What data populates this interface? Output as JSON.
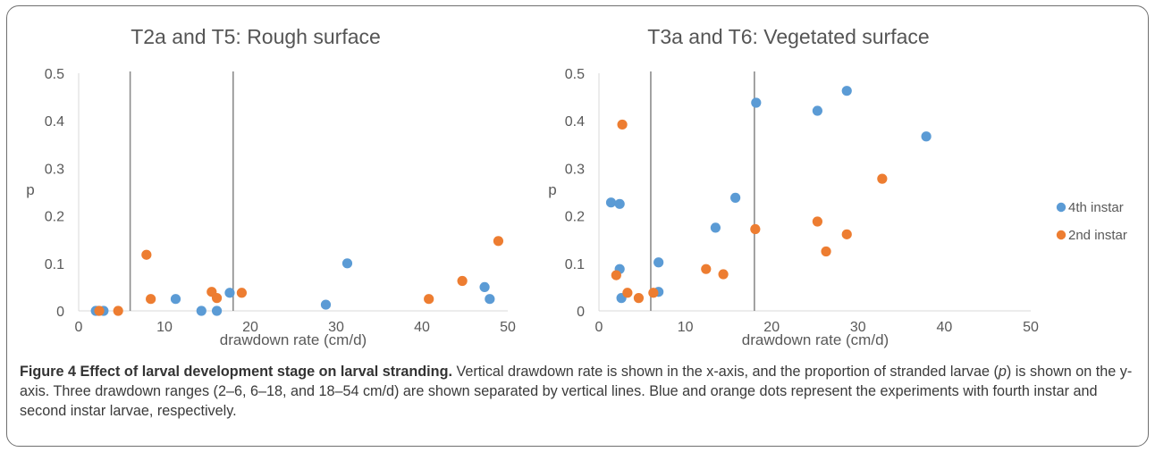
{
  "chart_data": [
    {
      "type": "scatter",
      "title": "T2a and T5: Rough surface",
      "xlabel": "drawdown rate (cm/d)",
      "ylabel": "p",
      "xlim": [
        0,
        50
      ],
      "ylim": [
        0,
        0.5
      ],
      "xticks": [
        "0",
        "10",
        "20",
        "30",
        "40",
        "50"
      ],
      "yticks": [
        "0",
        "0.1",
        "0.2",
        "0.3",
        "0.4",
        "0.5"
      ],
      "grid": false,
      "vertical_lines": [
        6,
        18
      ],
      "series": [
        {
          "color": "#5b9bd5",
          "points": [
            [
              2,
              0
            ],
            [
              2.3,
              0
            ],
            [
              2.9,
              0
            ],
            [
              11.3,
              0.025
            ],
            [
              14.3,
              0
            ],
            [
              16.1,
              0
            ],
            [
              17.6,
              0.038
            ],
            [
              28.8,
              0.013
            ],
            [
              31.3,
              0.1
            ],
            [
              47.3,
              0.05
            ],
            [
              47.9,
              0.025
            ]
          ]
        },
        {
          "color": "#ed7d31",
          "points": [
            [
              2.4,
              0
            ],
            [
              4.6,
              0
            ],
            [
              7.9,
              0.118
            ],
            [
              8.4,
              0.025
            ],
            [
              15.5,
              0.04
            ],
            [
              16.1,
              0.027
            ],
            [
              19,
              0.038
            ],
            [
              40.8,
              0.025
            ],
            [
              44.7,
              0.063
            ],
            [
              48.9,
              0.147
            ]
          ]
        }
      ]
    },
    {
      "type": "scatter",
      "title": "T3a and T6: Vegetated surface",
      "xlabel": "drawdown rate (cm/d)",
      "ylabel": "p",
      "xlim": [
        0,
        50
      ],
      "ylim": [
        0,
        0.5
      ],
      "xticks": [
        "0",
        "10",
        "20",
        "30",
        "40",
        "50"
      ],
      "yticks": [
        "0",
        "0.1",
        "0.2",
        "0.3",
        "0.4",
        "0.5"
      ],
      "grid": false,
      "vertical_lines": [
        6,
        18
      ],
      "legend_position": "right",
      "series": [
        {
          "name": "4th instar",
          "color": "#5b9bd5",
          "points": [
            [
              1.4,
              0.228
            ],
            [
              2.4,
              0.225
            ],
            [
              2.4,
              0.088
            ],
            [
              2.6,
              0.027
            ],
            [
              6.9,
              0.102
            ],
            [
              6.9,
              0.04
            ],
            [
              13.5,
              0.175
            ],
            [
              15.8,
              0.238
            ],
            [
              18.2,
              0.438
            ],
            [
              25.3,
              0.421
            ],
            [
              28.7,
              0.463
            ],
            [
              37.9,
              0.367
            ]
          ]
        },
        {
          "name": "2nd instar",
          "color": "#ed7d31",
          "points": [
            [
              2,
              0.075
            ],
            [
              2.7,
              0.392
            ],
            [
              3.3,
              0.038
            ],
            [
              4.6,
              0.027
            ],
            [
              6.3,
              0.038
            ],
            [
              12.4,
              0.088
            ],
            [
              14.4,
              0.077
            ],
            [
              18.1,
              0.172
            ],
            [
              25.3,
              0.188
            ],
            [
              26.3,
              0.125
            ],
            [
              28.7,
              0.161
            ],
            [
              32.8,
              0.278
            ]
          ]
        }
      ]
    }
  ],
  "caption": {
    "title": "Figure 4 Effect of larval development stage on larval stranding.",
    "text_1": " Vertical drawdown rate is shown in the x-axis, and the proportion of stranded larvae (",
    "text_p": "p",
    "text_2": ") is shown on the y-axis. Three drawdown ranges (2–6, 6–18, and 18–54 cm/d) are shown separated by vertical lines. Blue and orange dots represent the experiments with fourth instar and second instar larvae, respectively."
  }
}
